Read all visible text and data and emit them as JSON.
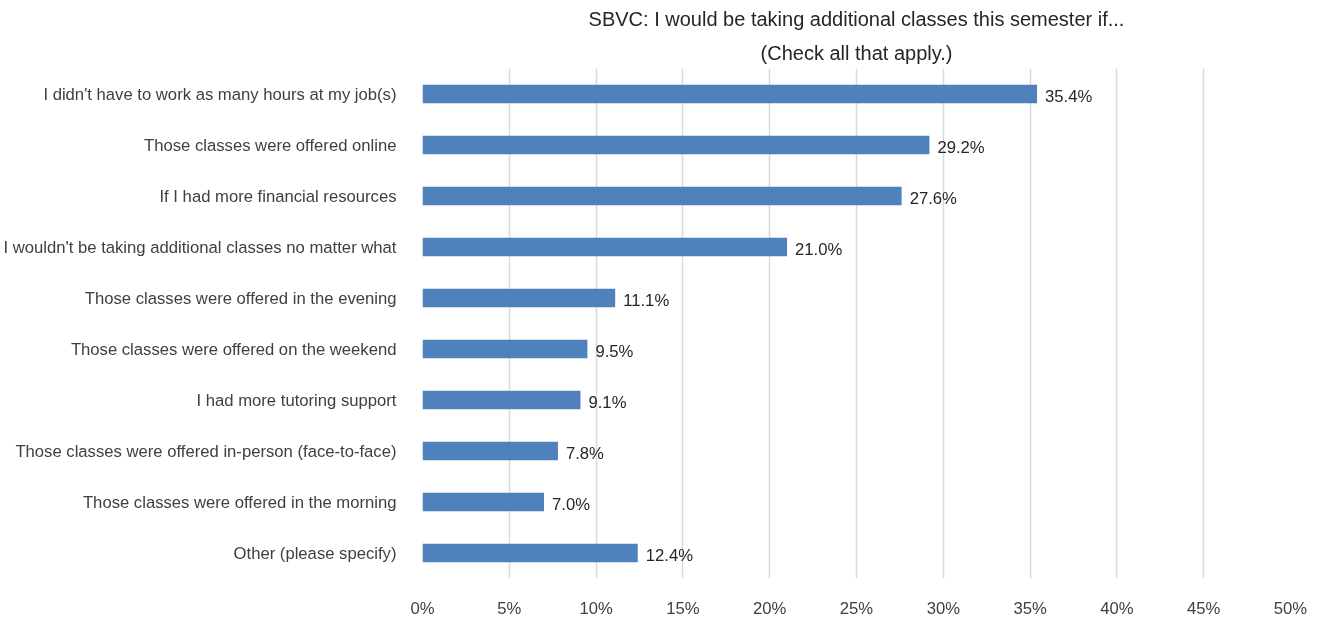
{
  "chart_data": {
    "type": "bar",
    "orientation": "horizontal",
    "title": "SBVC: I would be taking additional classes this semester if...",
    "subtitle": "(Check all that apply.)",
    "categories": [
      "I didn't have to work as many hours at my job(s)",
      "Those classes were offered online",
      "If I had more financial resources",
      "I wouldn't be taking additional classes no matter what",
      "Those classes were offered in the evening",
      "Those classes were offered on the weekend",
      "I had more tutoring support",
      "Those classes were offered in-person (face-to-face)",
      "Those classes were offered in the morning",
      "Other (please specify)"
    ],
    "values": [
      35.4,
      29.2,
      27.6,
      21.0,
      11.1,
      9.5,
      9.1,
      7.8,
      7.0,
      12.4
    ],
    "value_labels": [
      "35.4%",
      "29.2%",
      "27.6%",
      "21.0%",
      "11.1%",
      "9.5%",
      "9.1%",
      "7.8%",
      "7.0%",
      "12.4%"
    ],
    "color": "#4f81bd",
    "xlim": [
      0,
      50
    ],
    "xticks": [
      {
        "value": 0,
        "label": "0%"
      },
      {
        "value": 5,
        "label": "5%"
      },
      {
        "value": 10,
        "label": "10%"
      },
      {
        "value": 15,
        "label": "15%"
      },
      {
        "value": 20,
        "label": "20%"
      },
      {
        "value": 25,
        "label": "25%"
      },
      {
        "value": 30,
        "label": "30%"
      },
      {
        "value": 35,
        "label": "35%"
      },
      {
        "value": 40,
        "label": "40%"
      },
      {
        "value": 45,
        "label": "45%"
      },
      {
        "value": 50,
        "label": "50%"
      }
    ],
    "grid": "x"
  }
}
